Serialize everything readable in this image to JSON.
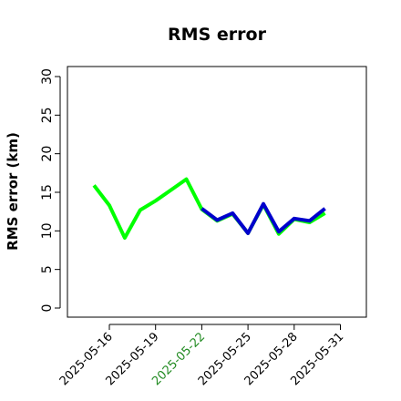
{
  "chart_data": {
    "type": "line",
    "title": "RMS error",
    "xlabel": "",
    "ylabel": "RMS error (km)",
    "ylim": [
      0,
      30
    ],
    "yticks": [
      0,
      5,
      10,
      15,
      20,
      25,
      30
    ],
    "xticks": [
      "2025-05-16",
      "2025-05-19",
      "2025-05-22",
      "2025-05-25",
      "2025-05-28",
      "2025-05-31"
    ],
    "highlighted_xtick": "2025-05-22",
    "highlight_color": "#228B22",
    "grid": false,
    "series": [
      {
        "color": "#00ff00",
        "x": [
          "2025-05-15",
          "2025-05-16",
          "2025-05-17",
          "2025-05-18",
          "2025-05-19",
          "2025-05-20",
          "2025-05-21",
          "2025-05-22",
          "2025-05-23",
          "2025-05-24",
          "2025-05-25",
          "2025-05-26",
          "2025-05-27",
          "2025-05-28",
          "2025-05-29",
          "2025-05-30"
        ],
        "values": [
          15.9,
          13.3,
          9.1,
          12.7,
          13.9,
          15.3,
          16.7,
          12.8,
          11.3,
          12.2,
          9.7,
          13.4,
          9.6,
          11.5,
          11.1,
          12.3
        ]
      },
      {
        "color": "#0000cc",
        "x": [
          "2025-05-22",
          "2025-05-23",
          "2025-05-24",
          "2025-05-25",
          "2025-05-26",
          "2025-05-27",
          "2025-05-28",
          "2025-05-29",
          "2025-05-30"
        ],
        "values": [
          12.9,
          11.4,
          12.3,
          9.7,
          13.5,
          9.9,
          11.6,
          11.3,
          12.9
        ]
      }
    ]
  }
}
